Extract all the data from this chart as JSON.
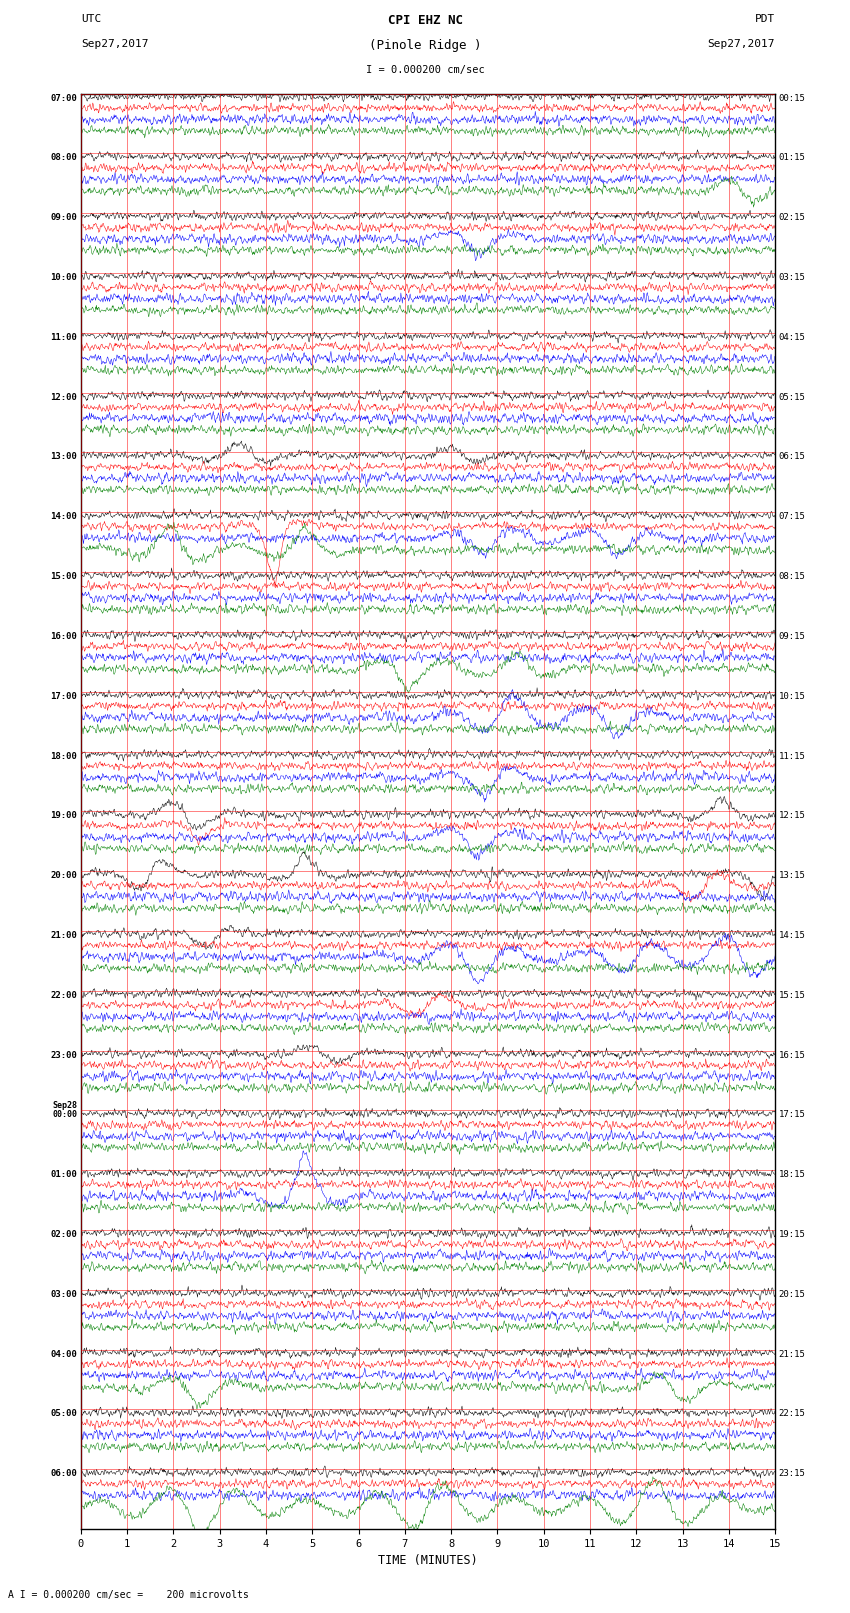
{
  "title_line1": "CPI EHZ NC",
  "title_line2": "(Pinole Ridge )",
  "scale_label": "I = 0.000200 cm/sec",
  "footer_label": "A I = 0.000200 cm/sec =    200 microvolts",
  "xlabel": "TIME (MINUTES)",
  "left_times": [
    "07:00",
    "08:00",
    "09:00",
    "10:00",
    "11:00",
    "12:00",
    "13:00",
    "14:00",
    "15:00",
    "16:00",
    "17:00",
    "18:00",
    "19:00",
    "20:00",
    "21:00",
    "22:00",
    "23:00",
    "Sep28\n00:00",
    "01:00",
    "02:00",
    "03:00",
    "04:00",
    "05:00",
    "06:00"
  ],
  "right_times": [
    "00:15",
    "01:15",
    "02:15",
    "03:15",
    "04:15",
    "05:15",
    "06:15",
    "07:15",
    "08:15",
    "09:15",
    "10:15",
    "11:15",
    "12:15",
    "13:15",
    "14:15",
    "15:15",
    "16:15",
    "17:15",
    "18:15",
    "19:15",
    "20:15",
    "21:15",
    "22:15",
    "23:15"
  ],
  "num_groups": 24,
  "colors": [
    "black",
    "red",
    "blue",
    "green"
  ],
  "x_ticks": [
    0,
    1,
    2,
    3,
    4,
    5,
    6,
    7,
    8,
    9,
    10,
    11,
    12,
    13,
    14,
    15
  ],
  "x_min": 0,
  "x_max": 15,
  "bg_color": "white",
  "fig_width": 8.5,
  "fig_height": 16.13,
  "seed": 42
}
